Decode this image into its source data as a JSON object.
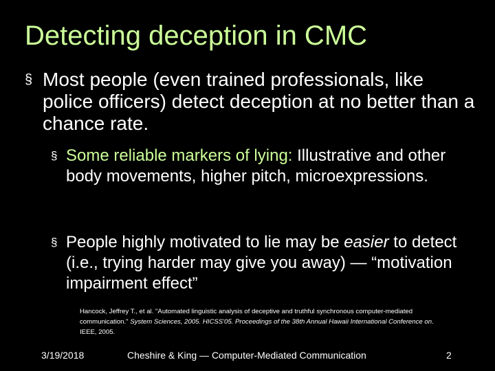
{
  "title": "Detecting deception in CMC",
  "bullets": {
    "marker": "§",
    "main": "Most people (even trained professionals, like police officers) detect deception at no better than a chance rate.",
    "markers_lead": "Some reliable markers of lying:",
    "markers_rest": " Illustrative and other body movements, higher pitch, microexpressions.",
    "motivated_a": "People highly motivated to lie may be ",
    "motivated_em": "easier",
    "motivated_b": " to detect (i.e., trying harder may give you away) — “motivation impairment effect”"
  },
  "citation": {
    "part1": "Hancock, Jeffrey T., et al. \"Automated linguistic analysis of deceptive and truthful synchronous computer-mediated communication.\" ",
    "part2_italic": "System Sciences, 2005. HICSS'05. Proceedings of the 38th Annual Hawaii International Conference on",
    "part3": ". IEEE, 2005."
  },
  "footer": {
    "date": "3/19/2018",
    "center": "Cheshire & King — Computer-Mediated Communication",
    "page": "2"
  },
  "colors": {
    "background": "#000000",
    "title": "#ccff99",
    "text": "#ffffff",
    "accent": "#ccff99"
  }
}
